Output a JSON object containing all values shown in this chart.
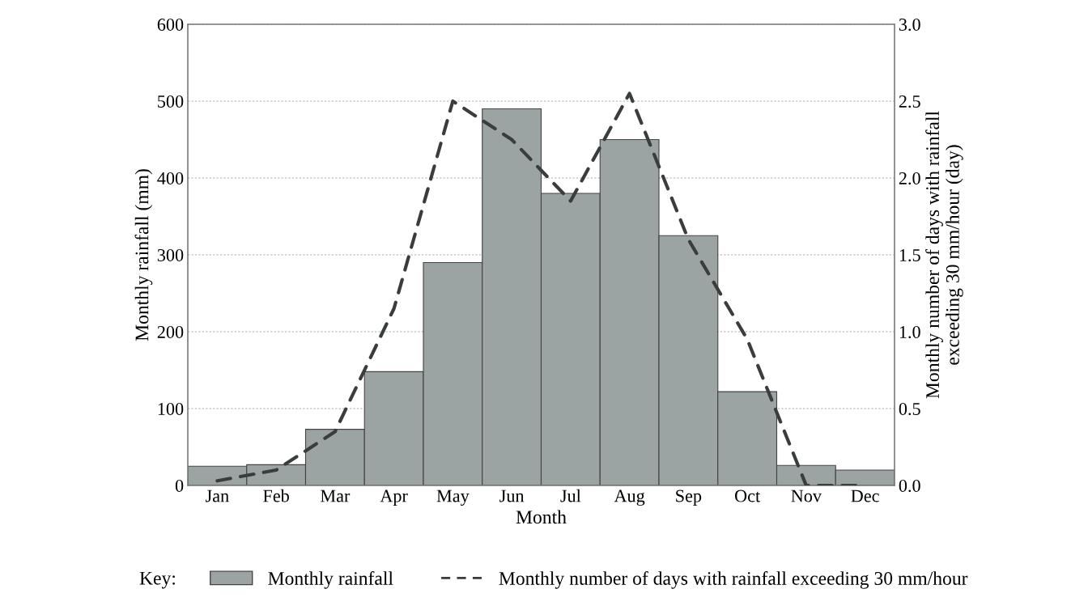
{
  "chart_data": {
    "type": "bar",
    "xlabel": "Month",
    "ylabel": "Monthly rainfall (mm)",
    "y2label": "Monthly number of days with rainfall\nexceeding 30 mm/hour (day)",
    "legend_title": "Key:",
    "categories": [
      "Jan",
      "Feb",
      "Mar",
      "Apr",
      "May",
      "Jun",
      "Jul",
      "Aug",
      "Sep",
      "Oct",
      "Nov",
      "Dec"
    ],
    "series": [
      {
        "name": "Monthly rainfall",
        "color": "#9ba3a3",
        "values": [
          25,
          27,
          73,
          148,
          290,
          490,
          380,
          450,
          325,
          122,
          26,
          20
        ]
      },
      {
        "name": "Monthly number of days with rainfall exceeding 30 mm/hour",
        "type": "line",
        "axis": "y2",
        "color": "#3a3d3d",
        "line_style": "dashed",
        "values": [
          0.03,
          0.1,
          0.35,
          1.15,
          2.5,
          2.25,
          1.85,
          2.55,
          1.6,
          0.95,
          0.0,
          0.0
        ]
      }
    ],
    "ylim": [
      0,
      600
    ],
    "yticks": [
      0,
      100,
      200,
      300,
      400,
      500,
      600
    ],
    "y2lim": [
      0,
      3.0
    ],
    "y2ticks": [
      {
        "value": 0,
        "label": "0.0"
      },
      {
        "value": 0.5,
        "label": "0.5"
      },
      {
        "value": 1.0,
        "label": "1.0"
      },
      {
        "value": 1.5,
        "label": "1.5"
      },
      {
        "value": 2.0,
        "label": "2.0"
      },
      {
        "value": 2.5,
        "label": "2.5"
      },
      {
        "value": 3.0,
        "label": "3.0"
      }
    ],
    "grid": "y",
    "legend": "bottom"
  }
}
